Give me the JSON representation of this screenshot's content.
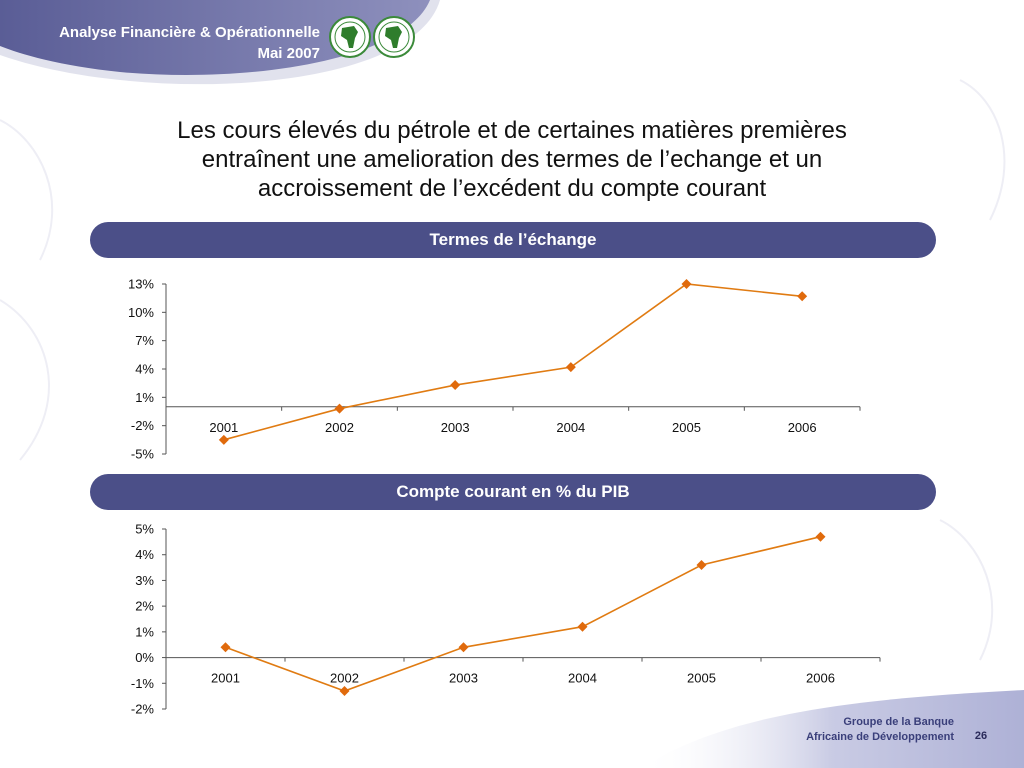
{
  "header": {
    "line1": "Analyse Financière & Opérationnelle",
    "line2": "Mai 2007"
  },
  "title": {
    "line1": "Les cours élevés du pétrole et de certaines matières premières",
    "line2": "entraînent une amelioration des termes de l’echange et un",
    "line3": "accroissement de l’excédent du compte courant"
  },
  "footer": {
    "line1": "Groupe de la Banque",
    "line2": "Africaine de Développement",
    "page": "26"
  },
  "colors": {
    "band": "#4b4f88",
    "series": "#e07b12",
    "marker": "#e06a0c"
  },
  "chart_data": [
    {
      "type": "line",
      "title": "Termes de l’échange",
      "categories": [
        "2001",
        "2002",
        "2003",
        "2004",
        "2005",
        "2006"
      ],
      "values": [
        -3.5,
        -0.2,
        2.3,
        4.2,
        13.0,
        11.7
      ],
      "yticks": [
        "13%",
        "10%",
        "7%",
        "4%",
        "1%",
        "-2%",
        "-5%"
      ],
      "ytick_values": [
        13,
        10,
        7,
        4,
        1,
        -2,
        -5
      ],
      "ylim": [
        -5,
        13
      ],
      "legend": "none",
      "grid": false
    },
    {
      "type": "line",
      "title": "Compte courant en % du PIB",
      "categories": [
        "2001",
        "2002",
        "2003",
        "2004",
        "2005",
        "2006"
      ],
      "values": [
        0.4,
        -1.3,
        0.4,
        1.2,
        3.6,
        4.7
      ],
      "yticks": [
        "5%",
        "4%",
        "3%",
        "2%",
        "1%",
        "0%",
        "-1%",
        "-2%"
      ],
      "ytick_values": [
        5,
        4,
        3,
        2,
        1,
        0,
        -1,
        -2
      ],
      "ylim": [
        -2,
        5
      ],
      "legend": "none",
      "grid": false
    }
  ]
}
